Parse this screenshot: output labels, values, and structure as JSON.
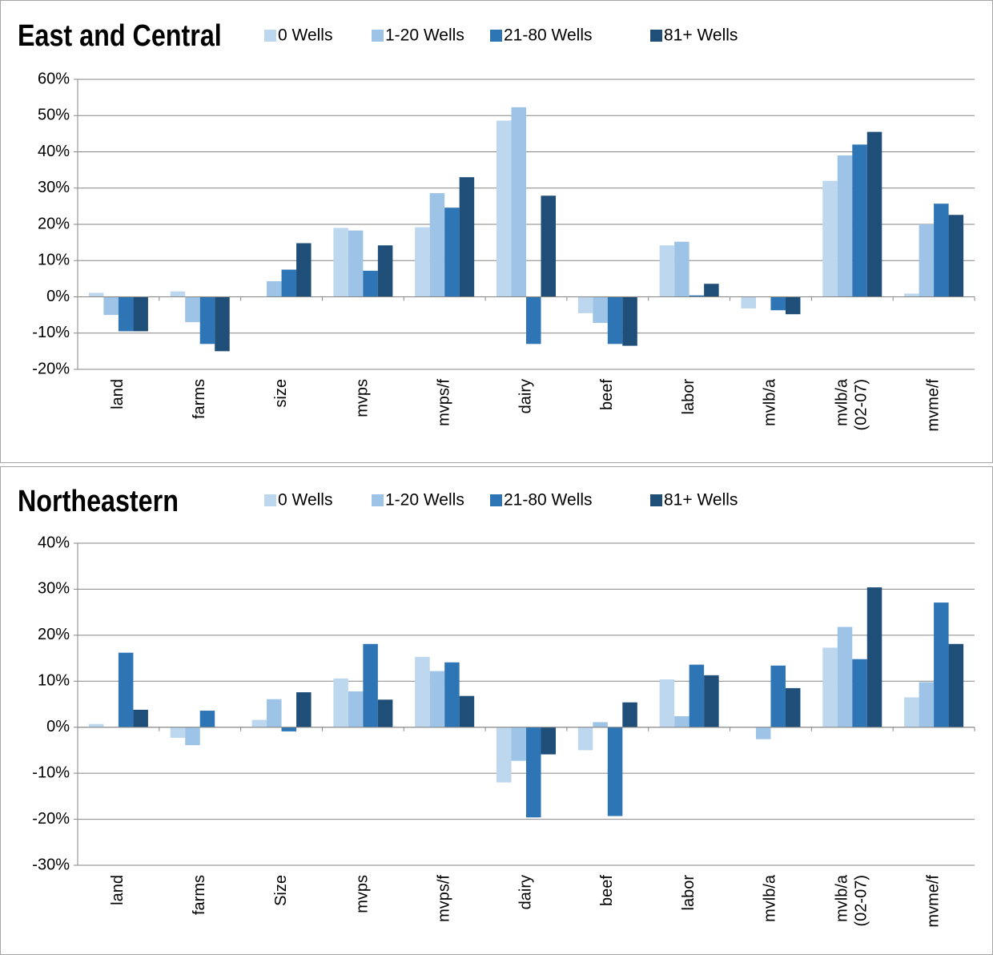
{
  "chart_data": [
    {
      "type": "bar",
      "title": "East and Central",
      "categories": [
        "land",
        "farms",
        "size",
        "mvps",
        "mvps/f",
        "dairy",
        "beef",
        "labor",
        "mvlb/a",
        [
          "mvlb/a",
          "(02-07)"
        ],
        "mvme/f"
      ],
      "series": [
        {
          "name": "0 Wells",
          "color": "#bdd7ee",
          "values": [
            1.1,
            1.5,
            0,
            19,
            19.2,
            48.6,
            -4.5,
            14.2,
            -3.2,
            32,
            0.9
          ]
        },
        {
          "name": "1-20 Wells",
          "color": "#9dc3e6",
          "values": [
            -5,
            -7,
            4.3,
            18.3,
            28.6,
            52.3,
            -7.2,
            15.2,
            0,
            39,
            20
          ]
        },
        {
          "name": "21-80 Wells",
          "color": "#2e75b6",
          "values": [
            -9.5,
            -13,
            7.5,
            7.2,
            24.6,
            -13,
            -13,
            0.4,
            -3.7,
            42,
            25.7
          ]
        },
        {
          "name": "81+ Wells",
          "color": "#1f4e79",
          "values": [
            -9.5,
            -15,
            14.8,
            14.2,
            33,
            27.9,
            -13.5,
            3.6,
            -4.8,
            45.5,
            22.6
          ]
        }
      ],
      "ylim": [
        -20,
        60
      ],
      "yticks": [
        {
          "value": -20,
          "label": "-20%"
        },
        {
          "value": -10,
          "label": "-10%"
        },
        {
          "value": 0,
          "label": "0%"
        },
        {
          "value": 10,
          "label": "10%"
        },
        {
          "value": 20,
          "label": "20%"
        },
        {
          "value": 30,
          "label": "30%"
        },
        {
          "value": 40,
          "label": "40%"
        },
        {
          "value": 50,
          "label": "50%"
        },
        {
          "value": 60,
          "label": "60%"
        }
      ],
      "grid": true
    },
    {
      "type": "bar",
      "title": "Northeastern",
      "categories": [
        "land",
        "farms",
        "Size",
        "mvps",
        "mvps/f",
        "dairy",
        "beef",
        "labor",
        "mvlb/a",
        [
          "mvlb/a",
          "(02-07)"
        ],
        "mvme/f"
      ],
      "series": [
        {
          "name": "0 Wells",
          "color": "#bdd7ee",
          "values": [
            0.7,
            -2.3,
            1.6,
            10.6,
            15.3,
            -12,
            -5,
            10.4,
            0,
            17.3,
            6.5
          ]
        },
        {
          "name": "1-20 Wells",
          "color": "#9dc3e6",
          "values": [
            0,
            -3.9,
            6.1,
            7.8,
            12.2,
            -7.3,
            1.1,
            2.4,
            -2.6,
            21.8,
            9.8
          ]
        },
        {
          "name": "21-80 Wells",
          "color": "#2e75b6",
          "values": [
            16.2,
            3.6,
            -0.9,
            18.1,
            14.1,
            -19.6,
            -19.3,
            13.6,
            13.4,
            14.8,
            27.1
          ]
        },
        {
          "name": "81+ Wells",
          "color": "#1f4e79",
          "values": [
            3.8,
            0,
            7.6,
            6.0,
            6.8,
            -5.9,
            5.4,
            11.3,
            8.5,
            30.4,
            18.1
          ]
        }
      ],
      "ylim": [
        -30,
        40
      ],
      "yticks": [
        {
          "value": -30,
          "label": "-30%"
        },
        {
          "value": -20,
          "label": "-20%"
        },
        {
          "value": -10,
          "label": "-10%"
        },
        {
          "value": 0,
          "label": "0%"
        },
        {
          "value": 10,
          "label": "10%"
        },
        {
          "value": 20,
          "label": "20%"
        },
        {
          "value": 30,
          "label": "30%"
        },
        {
          "value": 40,
          "label": "40%"
        }
      ],
      "grid": true
    }
  ]
}
